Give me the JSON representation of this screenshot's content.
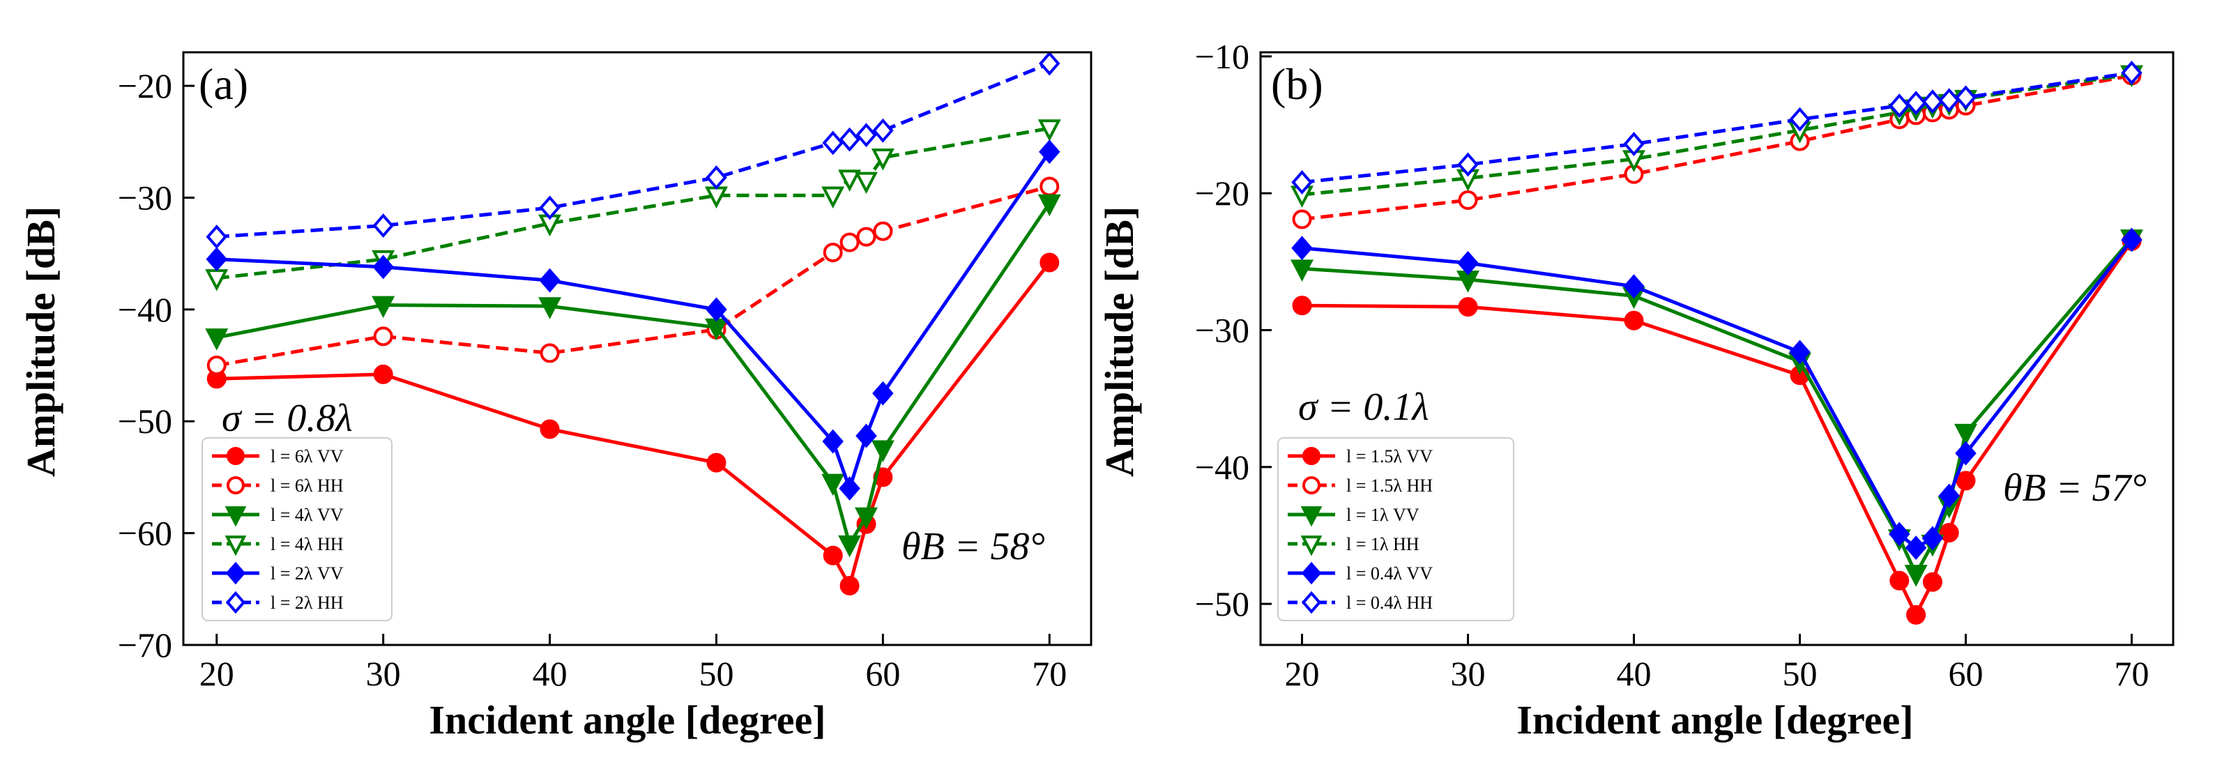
{
  "figure": {
    "panels": [
      {
        "panel_label": "(a)",
        "sigma_text": "σ = 0.8λ",
        "theta_text": "θB = 58°",
        "legend_labels": [
          "l = 6λ  VV",
          "l = 6λ  HH",
          "l = 4λ  VV",
          "l = 4λ  HH",
          "l = 2λ  VV",
          "l = 2λ  HH"
        ]
      },
      {
        "panel_label": "(b)",
        "sigma_text": "σ = 0.1λ",
        "theta_text": "θB = 57°",
        "legend_labels": [
          "l = 1.5λ  VV",
          "l = 1.5λ  HH",
          "l = 1λ  VV",
          "l = 1λ  HH",
          "l = 0.4λ  VV",
          "l = 0.4λ  HH"
        ]
      }
    ]
  },
  "chart_data": [
    {
      "type": "line",
      "title": "(a)",
      "xlabel": "Incident angle [degree]",
      "ylabel": "Amplitude [dB]",
      "xlim": [
        18,
        72.5
      ],
      "ylim": [
        -70,
        -17
      ],
      "xticks": [
        20,
        30,
        40,
        50,
        60,
        70
      ],
      "yticks": [
        -70,
        -60,
        -50,
        -40,
        -30,
        -20
      ],
      "tick_labels_x": [
        "20",
        "30",
        "40",
        "50",
        "60",
        "70"
      ],
      "tick_labels_y": [
        "−70",
        "−60",
        "−50",
        "−40",
        "−30",
        "−20"
      ],
      "annotations": [
        "σ = 0.8λ",
        "θB = 58°"
      ],
      "legend_position": "lower-left",
      "series": [
        {
          "name": "l = 6λ VV",
          "color": "#ff0000",
          "marker": "circle",
          "filled": true,
          "dashed": false,
          "x": [
            20,
            30,
            40,
            50,
            57,
            58,
            59,
            60,
            70
          ],
          "y": [
            -46.2,
            -45.8,
            -50.7,
            -53.7,
            -62.0,
            -64.7,
            -59.2,
            -55.0,
            -35.8
          ]
        },
        {
          "name": "l = 6λ HH",
          "color": "#ff0000",
          "marker": "circle",
          "filled": false,
          "dashed": true,
          "x": [
            20,
            30,
            40,
            50,
            57,
            58,
            59,
            60,
            70
          ],
          "y": [
            -45.0,
            -42.4,
            -43.9,
            -41.8,
            -34.9,
            -34.0,
            -33.5,
            -33.0,
            -29.0
          ]
        },
        {
          "name": "l = 4λ VV",
          "color": "#008000",
          "marker": "triangle-down",
          "filled": true,
          "dashed": false,
          "x": [
            20,
            30,
            40,
            50,
            57,
            58,
            59,
            60,
            70
          ],
          "y": [
            -42.5,
            -39.6,
            -39.7,
            -41.6,
            -55.5,
            -61.0,
            -58.5,
            -52.5,
            -30.5
          ]
        },
        {
          "name": "l = 4λ HH",
          "color": "#008000",
          "marker": "triangle-down",
          "filled": false,
          "dashed": true,
          "x": [
            20,
            30,
            40,
            50,
            57,
            58,
            59,
            60,
            70
          ],
          "y": [
            -37.2,
            -35.5,
            -32.3,
            -29.8,
            -29.8,
            -28.3,
            -28.5,
            -26.4,
            -23.8
          ]
        },
        {
          "name": "l = 2λ VV",
          "color": "#0000ff",
          "marker": "diamond",
          "filled": true,
          "dashed": false,
          "x": [
            20,
            30,
            40,
            50,
            57,
            58,
            59,
            60,
            70
          ],
          "y": [
            -35.5,
            -36.2,
            -37.4,
            -40.0,
            -51.8,
            -56.0,
            -51.3,
            -47.5,
            -25.9
          ]
        },
        {
          "name": "l = 2λ HH",
          "color": "#0000ff",
          "marker": "diamond",
          "filled": false,
          "dashed": true,
          "x": [
            20,
            30,
            40,
            50,
            57,
            58,
            59,
            60,
            70
          ],
          "y": [
            -33.5,
            -32.5,
            -30.9,
            -28.2,
            -25.1,
            -24.8,
            -24.4,
            -24.0,
            -18.0
          ]
        }
      ]
    },
    {
      "type": "line",
      "title": "(b)",
      "xlabel": "Incident angle [degree]",
      "ylabel": "Amplitude [dB]",
      "xlim": [
        17.5,
        72.5
      ],
      "ylim": [
        -53,
        -9.7
      ],
      "xticks": [
        20,
        30,
        40,
        50,
        60,
        70
      ],
      "yticks": [
        -50,
        -40,
        -30,
        -20,
        -10
      ],
      "tick_labels_x": [
        "20",
        "30",
        "40",
        "50",
        "60",
        "70"
      ],
      "tick_labels_y": [
        "−50",
        "−40",
        "−30",
        "−20",
        "−10"
      ],
      "annotations": [
        "σ = 0.1λ",
        "θB = 57°"
      ],
      "legend_position": "lower-left",
      "series": [
        {
          "name": "l = 1.5λ VV",
          "color": "#ff0000",
          "marker": "circle",
          "filled": true,
          "dashed": false,
          "x": [
            20,
            30,
            40,
            50,
            56,
            57,
            58,
            59,
            60,
            70
          ],
          "y": [
            -28.2,
            -28.3,
            -29.3,
            -33.3,
            -48.3,
            -50.8,
            -48.4,
            -44.8,
            -41.0,
            -23.5
          ]
        },
        {
          "name": "l = 1.5λ HH",
          "color": "#ff0000",
          "marker": "circle",
          "filled": false,
          "dashed": true,
          "x": [
            20,
            30,
            40,
            50,
            56,
            57,
            58,
            59,
            60,
            70
          ],
          "y": [
            -21.9,
            -20.5,
            -18.6,
            -16.2,
            -14.6,
            -14.3,
            -14.1,
            -13.9,
            -13.6,
            -11.4
          ]
        },
        {
          "name": "l = 1λ VV",
          "color": "#008000",
          "marker": "triangle-down",
          "filled": true,
          "dashed": false,
          "x": [
            20,
            30,
            40,
            50,
            56,
            57,
            58,
            59,
            60,
            70
          ],
          "y": [
            -25.5,
            -26.3,
            -27.5,
            -32.3,
            -45.2,
            -47.8,
            -45.6,
            -42.8,
            -37.5,
            -23.3
          ]
        },
        {
          "name": "l = 1λ HH",
          "color": "#008000",
          "marker": "triangle-down",
          "filled": false,
          "dashed": true,
          "x": [
            20,
            30,
            40,
            50,
            56,
            57,
            58,
            59,
            60,
            70
          ],
          "y": [
            -20.1,
            -18.9,
            -17.5,
            -15.4,
            -14.1,
            -13.8,
            -13.6,
            -13.4,
            -13.1,
            -11.3
          ]
        },
        {
          "name": "l = 0.4λ VV",
          "color": "#0000ff",
          "marker": "diamond",
          "filled": true,
          "dashed": false,
          "x": [
            20,
            30,
            40,
            50,
            56,
            57,
            58,
            59,
            60,
            70
          ],
          "y": [
            -24.0,
            -25.1,
            -26.8,
            -31.6,
            -44.9,
            -45.9,
            -45.2,
            -42.1,
            -39.0,
            -23.4
          ]
        },
        {
          "name": "l = 0.4λ HH",
          "color": "#0000ff",
          "marker": "diamond",
          "filled": false,
          "dashed": true,
          "x": [
            20,
            30,
            40,
            50,
            56,
            57,
            58,
            59,
            60,
            70
          ],
          "y": [
            -19.2,
            -17.9,
            -16.4,
            -14.6,
            -13.6,
            -13.4,
            -13.3,
            -13.2,
            -13.0,
            -11.2
          ]
        }
      ]
    }
  ]
}
